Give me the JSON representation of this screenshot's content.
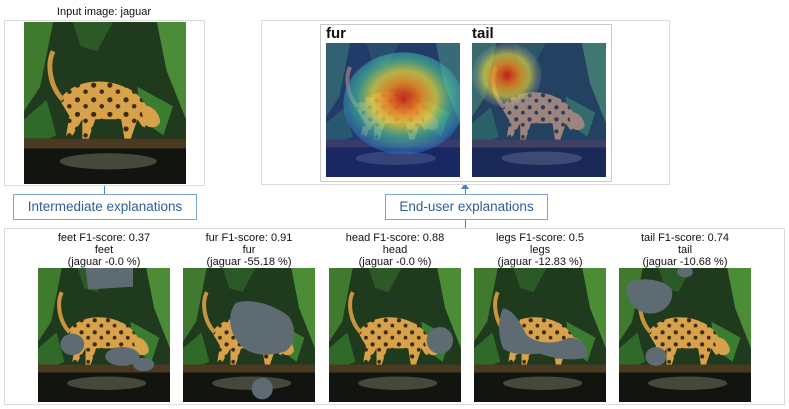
{
  "input_image": {
    "title": "Input image: jaguar"
  },
  "labels": {
    "intermediate": "Intermediate explanations",
    "end_user": "End-user explanations"
  },
  "end_user_panels": [
    {
      "title": "fur"
    },
    {
      "title": "tail"
    }
  ],
  "concepts": [
    {
      "score_line": "feet F1-score: 0.37",
      "name": "feet",
      "effect": "(jaguar -0.0 %)"
    },
    {
      "score_line": "fur F1-score: 0.91",
      "name": "fur",
      "effect": "(jaguar -55.18 %)"
    },
    {
      "score_line": "head F1-score: 0.88",
      "name": "head",
      "effect": "(jaguar -0.0 %)"
    },
    {
      "score_line": "legs F1-score: 0.5",
      "name": "legs",
      "effect": "(jaguar -12.83 %)"
    },
    {
      "score_line": "tail F1-score: 0.74",
      "name": "tail",
      "effect": "(jaguar -10.68 %)"
    }
  ],
  "colors": {
    "mask_gray": "#5f6b73",
    "label_blue": "#2f5e9a",
    "connector_blue": "#4a7fc0"
  }
}
